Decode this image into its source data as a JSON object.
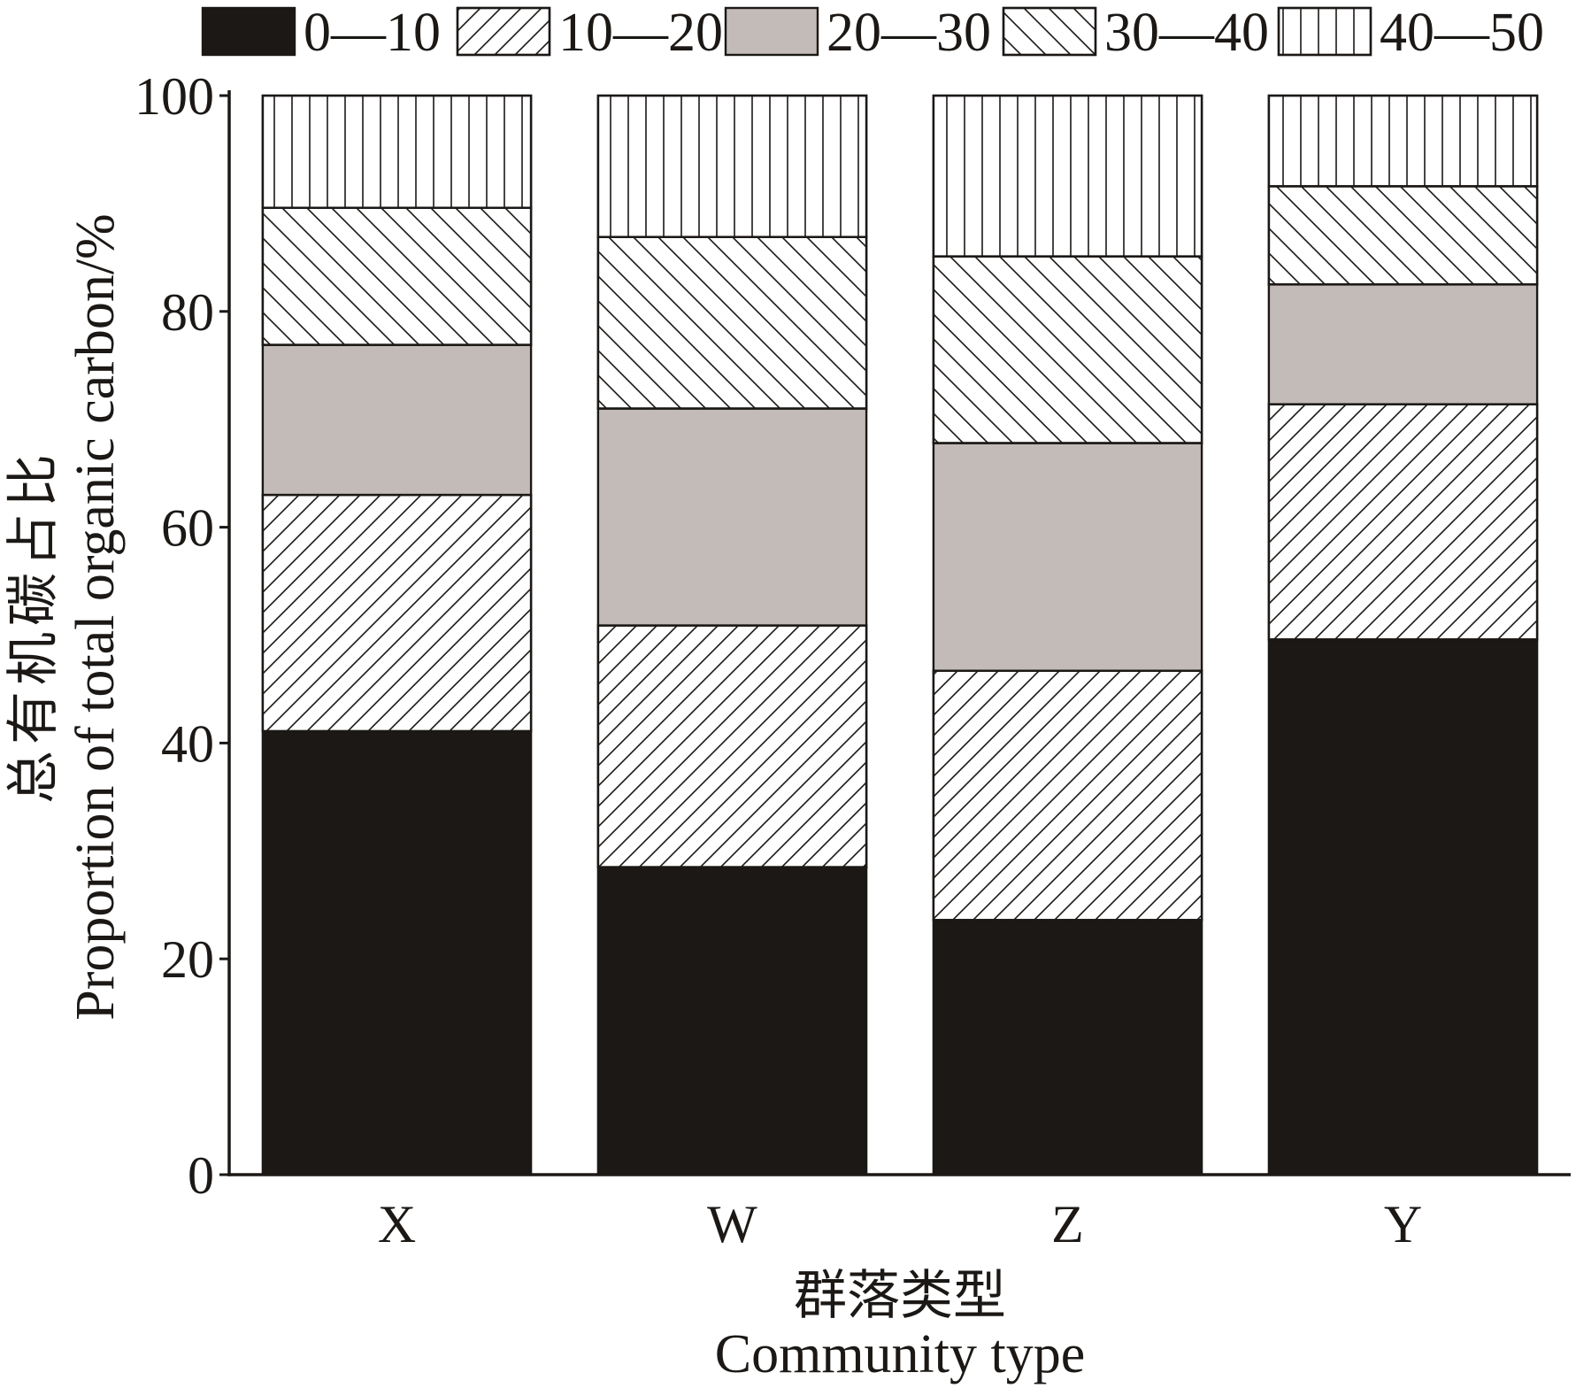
{
  "chart_data": {
    "type": "bar",
    "stacked": true,
    "categories": [
      "X",
      "W",
      "Z",
      "Y"
    ],
    "series": [
      {
        "name": "0—10",
        "values": [
          41.1,
          28.5,
          23.6,
          49.6
        ],
        "fill": "#1b1815"
      },
      {
        "name": "10—20",
        "values": [
          21.9,
          22.4,
          23.1,
          21.8
        ],
        "fill": "#ffffff"
      },
      {
        "name": "20—30",
        "values": [
          13.9,
          20.1,
          21.1,
          11.1
        ],
        "fill": "#c3bbb8"
      },
      {
        "name": "30—40",
        "values": [
          12.7,
          15.9,
          17.3,
          9.1
        ],
        "fill": "#ffffff"
      },
      {
        "name": "40—50",
        "values": [
          10.4,
          13.1,
          14.9,
          8.4
        ],
        "fill": "#ffffff"
      }
    ],
    "xlabel": [
      "群落类型",
      "Community type"
    ],
    "ylabel": [
      "总有机碳占比",
      "Proportion of total organic carbon/%"
    ],
    "yticks": [
      0,
      20,
      40,
      60,
      80,
      100
    ],
    "ylim": [
      0,
      100
    ],
    "grid": false,
    "legend_position": "top",
    "line_color": "#1b1815"
  }
}
